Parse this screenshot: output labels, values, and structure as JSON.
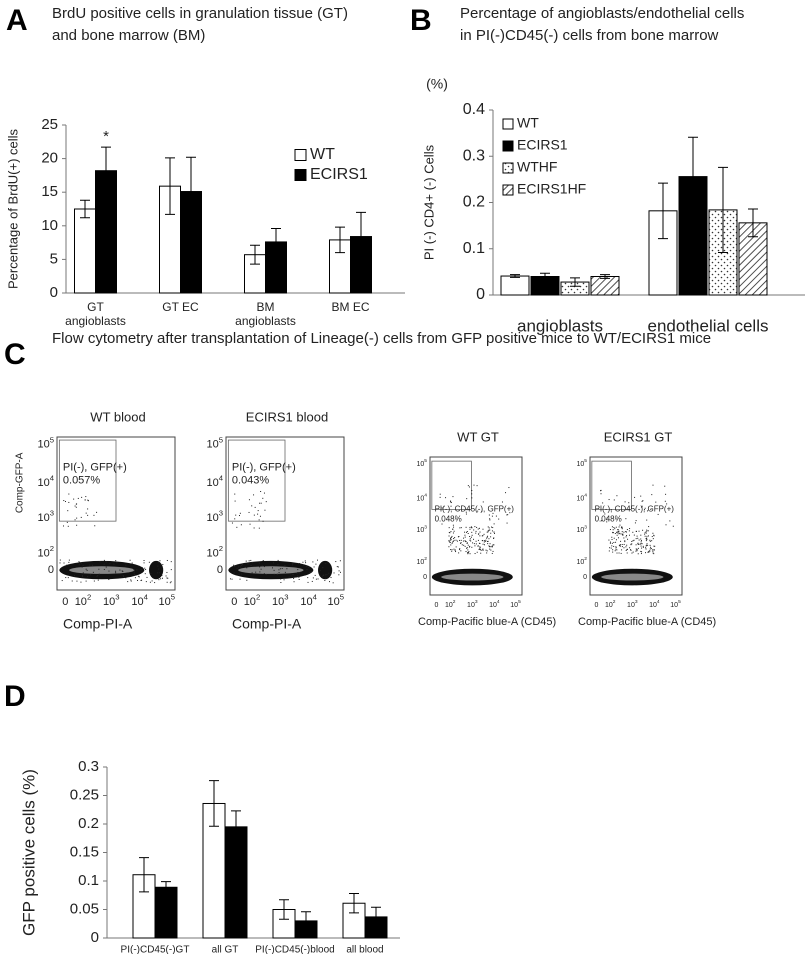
{
  "panels": {
    "a": "A",
    "b": "B",
    "c": "C",
    "d": "D"
  },
  "chart_data": [
    {
      "type": "bar",
      "title": [
        "BrdU positive cells in granulation tissue (GT)",
        "and bone marrow (BM)"
      ],
      "y_label": "Percentage of BrdU(+) cells",
      "categories": [
        [
          "GT",
          "angioblasts"
        ],
        [
          "GT EC"
        ],
        [
          "BM",
          "angioblasts"
        ],
        [
          "BM EC"
        ]
      ],
      "series": [
        {
          "name": "WT",
          "color": "#ffffff",
          "values": [
            12.5,
            15.9,
            5.7,
            7.9
          ],
          "errors": [
            1.3,
            4.2,
            1.4,
            1.9
          ]
        },
        {
          "name": "ECIRS1",
          "color": "#000000",
          "values": [
            18.2,
            15.1,
            7.6,
            8.4
          ],
          "errors": [
            3.5,
            5.1,
            2.0,
            3.6
          ]
        }
      ],
      "annotations": [
        "*"
      ],
      "ylim": [
        0,
        25
      ],
      "yticks": [
        0,
        5,
        10,
        15,
        20,
        25
      ],
      "legend": "upper right"
    },
    {
      "type": "bar",
      "title": [
        "Percentage of angioblasts/endothelial cells",
        "in PI(-)CD45(-) cells from bone marrow"
      ],
      "y_unit": "(%)",
      "y_label": "PI (-) CD4+ (-) Cells",
      "categories": [
        [
          "angioblasts"
        ],
        [
          "endothelial cells"
        ]
      ],
      "series": [
        {
          "name": "WT",
          "color": "#ffffff",
          "values": [
            0.041,
            0.182
          ],
          "errors": [
            0.003,
            0.06
          ]
        },
        {
          "name": "ECIRS1",
          "color": "#000000",
          "values": [
            0.04,
            0.256
          ],
          "errors": [
            0.007,
            0.085
          ]
        },
        {
          "name": "WTHF",
          "color": "#ffffff",
          "pattern": "dots",
          "values": [
            0.028,
            0.184
          ],
          "errors": [
            0.009,
            0.092
          ]
        },
        {
          "name": "ECIRS1HF",
          "color": "#ffffff",
          "pattern": "hatch",
          "values": [
            0.04,
            0.156
          ],
          "errors": [
            0.004,
            0.03
          ]
        }
      ],
      "ylim": [
        0,
        0.4
      ],
      "yticks": [
        0,
        0.1,
        0.2,
        0.3,
        0.4
      ],
      "legend": "upper left"
    },
    {
      "type": "bar",
      "y_label": "GFP positive cells  (%)",
      "categories": [
        [
          "PI(-)CD45(-)GT"
        ],
        [
          "all GT"
        ],
        [
          "PI(-)CD45(-)blood"
        ],
        [
          "all blood"
        ]
      ],
      "series": [
        {
          "color": "#ffffff",
          "values": [
            0.111,
            0.236,
            0.05,
            0.061
          ],
          "errors": [
            0.03,
            0.04,
            0.017,
            0.017
          ]
        },
        {
          "color": "#000000",
          "values": [
            0.089,
            0.195,
            0.03,
            0.037
          ],
          "errors": [
            0.01,
            0.028,
            0.016,
            0.017
          ]
        }
      ],
      "ylim": [
        0,
        0.3
      ],
      "yticks": [
        0,
        0.05,
        0.1,
        0.15,
        0.2,
        0.25,
        0.3
      ]
    }
  ],
  "flow": {
    "title": "Flow cytometry after transplantation of Lineage(-) cells from GFP positive mice to WT/ECIRS1 mice",
    "y_label": "Comp-GFP-A",
    "ticks": [
      [
        "0"
      ],
      [
        "10",
        "2"
      ],
      [
        "10",
        "3"
      ],
      [
        "10",
        "4"
      ],
      [
        "10",
        "5"
      ]
    ],
    "plots": [
      {
        "title": "WT blood",
        "gate": [
          "PI(-), GFP(+)",
          "0.057%"
        ],
        "x_label": "Comp-PI-A"
      },
      {
        "title": "ECIRS1 blood",
        "gate": [
          "PI(-), GFP(+)",
          "0.043%"
        ],
        "x_label": "Comp-PI-A"
      },
      {
        "title": "WT GT",
        "gate": [
          "PI(-), CD45(-), GFP(+)",
          "0.048%"
        ],
        "x_label": "Comp-Pacific blue-A (CD45)"
      },
      {
        "title": "ECIRS1 GT",
        "gate": [
          "PI(-), CD45(-), GFP(+)",
          "0.048%"
        ],
        "x_label": "Comp-Pacific blue-A (CD45)"
      }
    ]
  }
}
